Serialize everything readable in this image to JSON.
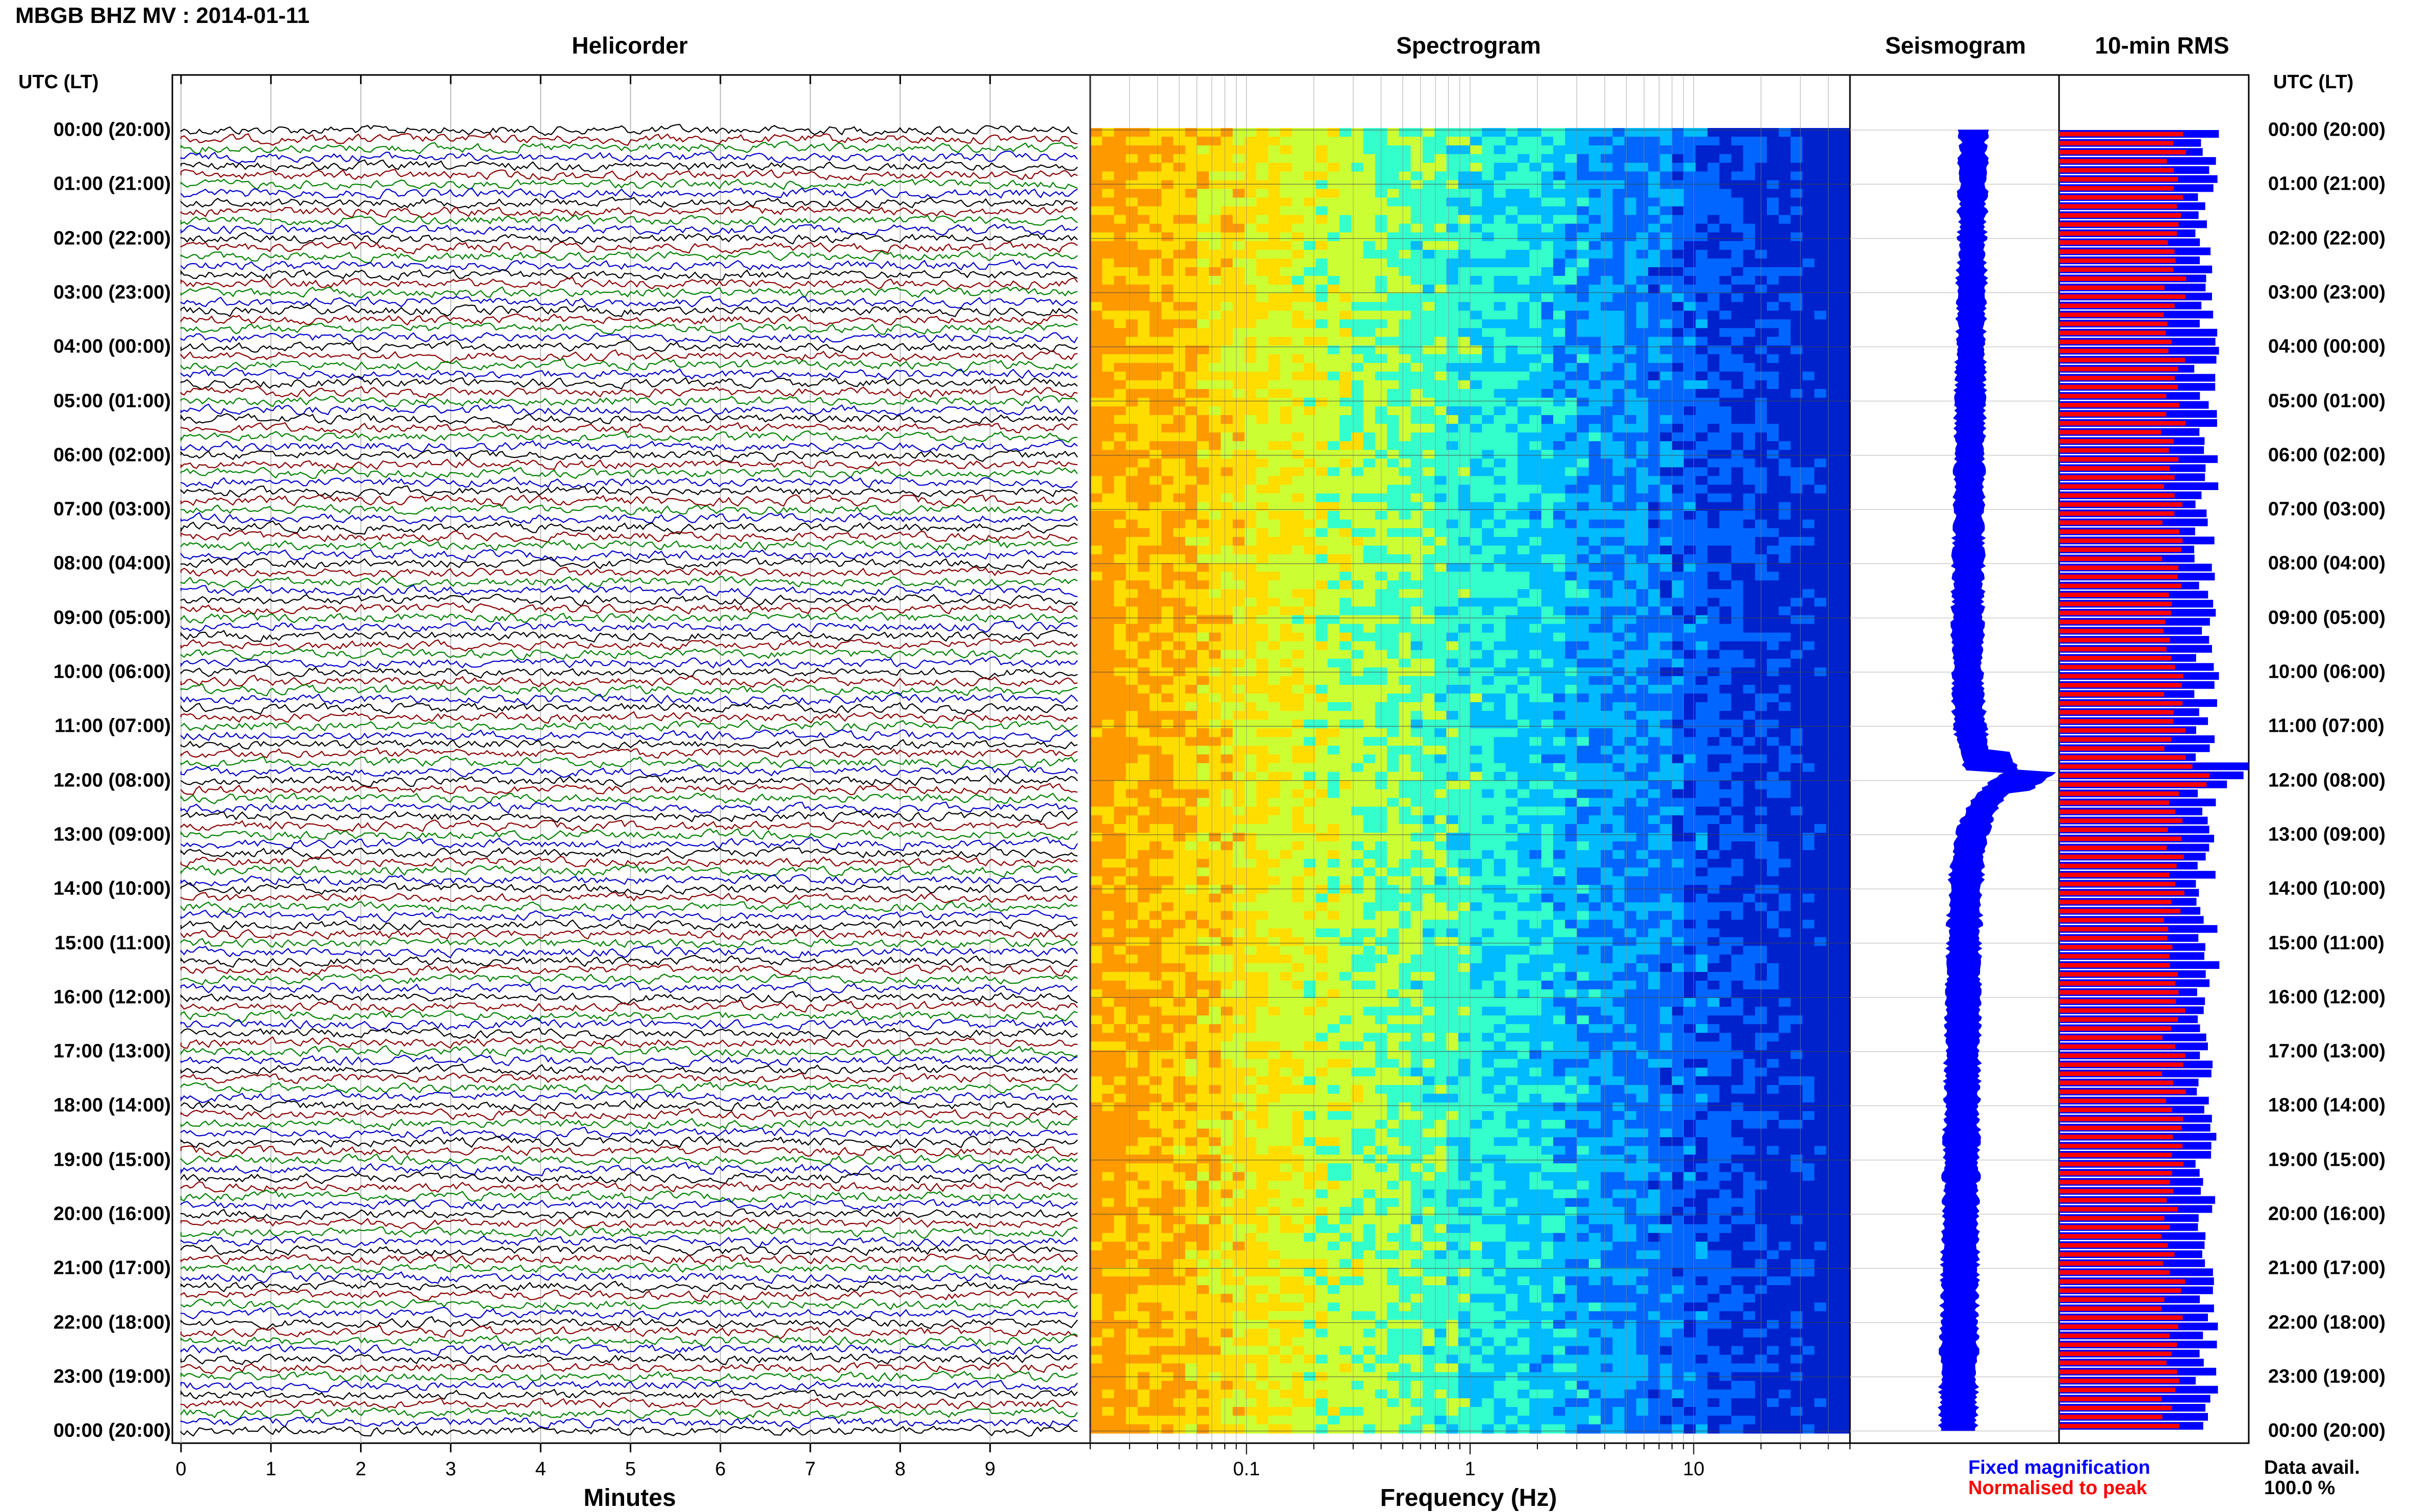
{
  "header": {
    "station": "MBGB BHZ MV : 2014-01-11",
    "utc_label": "UTC (LT)"
  },
  "chart_data": [
    {
      "type": "line",
      "title": "Helicorder",
      "xlabel": "Minutes",
      "xlim": [
        0,
        10
      ],
      "x_ticks": [
        "0",
        "1",
        "2",
        "3",
        "4",
        "5",
        "6",
        "7",
        "8",
        "9"
      ],
      "rows_per_hour": 6,
      "trace_colors": [
        "#000000",
        "#8b0000",
        "#008000",
        "#0000cd"
      ]
    },
    {
      "type": "heatmap",
      "title": "Spectrogram",
      "xlabel": "Frequency (Hz)",
      "x_scale": "log",
      "xlim": [
        0.02,
        50
      ],
      "x_ticks": [
        {
          "value": 0.1,
          "label": "0.1"
        },
        {
          "value": 1,
          "label": "1"
        },
        {
          "value": 10,
          "label": "10"
        }
      ],
      "colormap": [
        "#ff9900",
        "#ffdd00",
        "#ccff33",
        "#33ffcc",
        "#00bbff",
        "#0066ff",
        "#0022cc"
      ]
    },
    {
      "type": "line",
      "title": "Seismogram",
      "color": "#0000ff",
      "notable_event_utc": "11:50"
    },
    {
      "type": "bar",
      "title": "10-min RMS",
      "series": [
        {
          "name": "Fixed magnification",
          "color": "#0000ff"
        },
        {
          "name": "Normalised to peak",
          "color": "#ff0000"
        }
      ],
      "notable_event_utc": "11:50"
    }
  ],
  "time_labels": [
    "00:00 (20:00)",
    "01:00 (21:00)",
    "02:00 (22:00)",
    "03:00 (23:00)",
    "04:00 (00:00)",
    "05:00 (01:00)",
    "06:00 (02:00)",
    "07:00 (03:00)",
    "08:00 (04:00)",
    "09:00 (05:00)",
    "10:00 (06:00)",
    "11:00 (07:00)",
    "12:00 (08:00)",
    "13:00 (09:00)",
    "14:00 (10:00)",
    "15:00 (11:00)",
    "16:00 (12:00)",
    "17:00 (13:00)",
    "18:00 (14:00)",
    "19:00 (15:00)",
    "20:00 (16:00)",
    "21:00 (17:00)",
    "22:00 (18:00)",
    "23:00 (19:00)",
    "00:00 (20:00)"
  ],
  "legend": {
    "fixed": "Fixed magnification",
    "normalised": "Normalised to peak"
  },
  "data_availability": {
    "label": "Data avail.",
    "value": "100.0 %"
  }
}
